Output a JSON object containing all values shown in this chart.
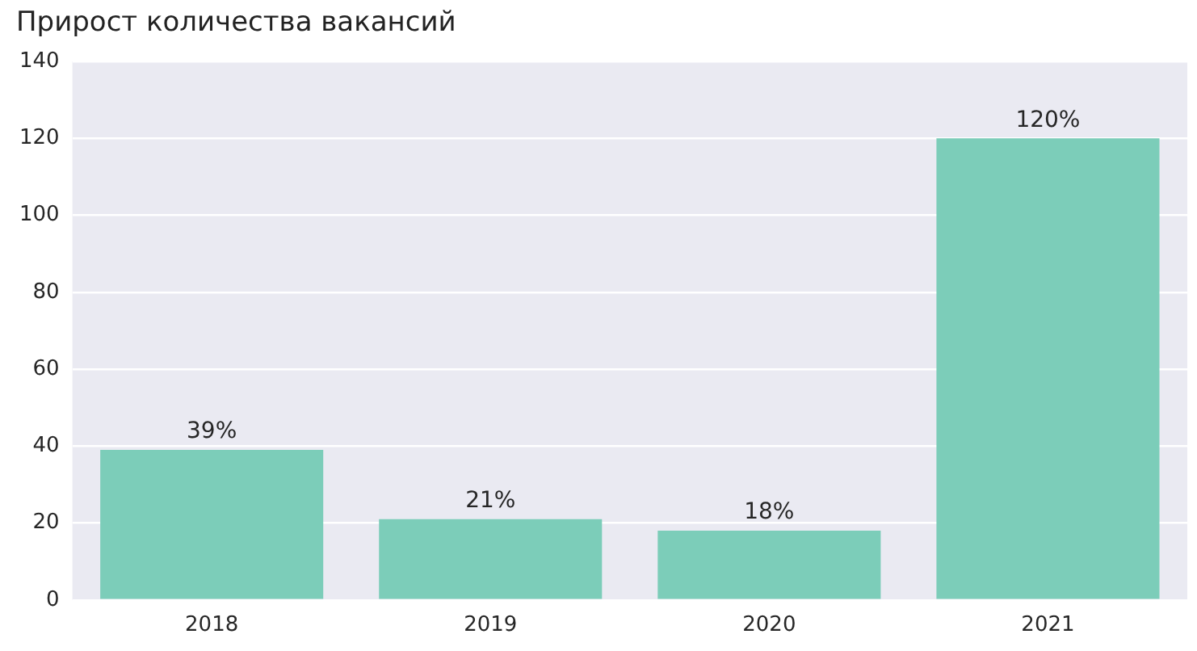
{
  "chart_data": {
    "type": "bar",
    "title": "Прирост количества вакансий",
    "categories": [
      "2018",
      "2019",
      "2020",
      "2021"
    ],
    "values": [
      39,
      21,
      18,
      120
    ],
    "value_labels": [
      "39%",
      "21%",
      "18%",
      "120%"
    ],
    "color": "#7ccdb9",
    "ylim": [
      0,
      140
    ],
    "yticks": [
      0,
      20,
      40,
      60,
      80,
      100,
      120,
      140
    ],
    "grid": "y",
    "legend": false
  }
}
